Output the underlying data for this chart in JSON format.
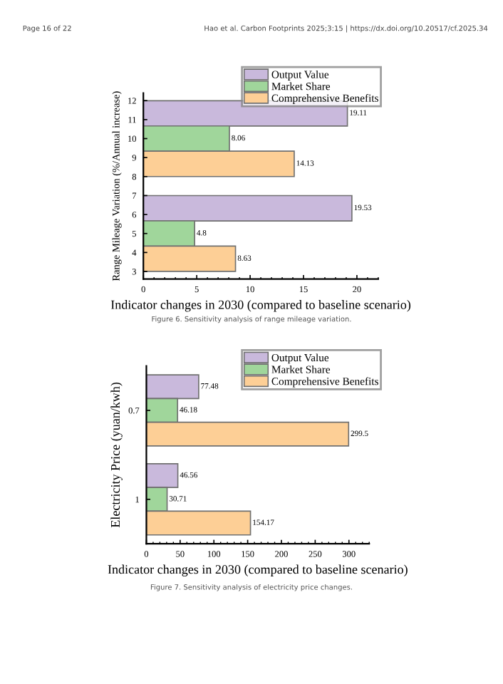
{
  "chart_data": [
    {
      "type": "bar",
      "orientation": "horizontal",
      "ylabel": "Range Mileage Variation (%/Annual increase)",
      "xlabel": "Indicator changes in 2030 (compared to baseline scenario)",
      "annotations": [
        "Page 16 of 22",
        "Hao et al. Carbon Footprints 2025;3:15 | https://dx.doi.org/10.20517/cf.2025.34",
        "Figure 6. Sensitivity analysis of range mileage variation."
      ],
      "series": [
        {
          "name": "Output Value",
          "color": "#c9b9dc",
          "x": [
            11.33,
            6.33
          ],
          "values": [
            19.11,
            19.53
          ]
        },
        {
          "name": "Market Share",
          "color": "#a0d69b",
          "x": [
            10.0,
            5.0
          ],
          "values": [
            8.06,
            4.8
          ]
        },
        {
          "name": "Comprehensive Benefits",
          "color": "#fdcf96",
          "x": [
            8.67,
            3.67
          ],
          "values": [
            14.13,
            8.63
          ]
        }
      ],
      "data_labels": true,
      "xlim": [
        0,
        22
      ],
      "xticks": [
        0,
        5,
        10,
        15,
        20
      ],
      "ylim": [
        2.6,
        12.4
      ],
      "yticks": [
        3,
        4,
        5,
        6,
        7,
        8,
        9,
        10,
        11,
        12
      ],
      "legend": "top right",
      "grid": false
    },
    {
      "type": "bar",
      "orientation": "horizontal",
      "ylabel": "Electricity Price (yuan/kwh)",
      "xlabel": "Indicator changes in 2030 (compared to baseline scenario)",
      "annotations": [
        "Figure 7. Sensitivity analysis of electricity price changes."
      ],
      "categories": [
        "0.7",
        "1"
      ],
      "series": [
        {
          "name": "Output Value",
          "color": "#c9b9dc",
          "values": [
            77.48,
            46.56
          ]
        },
        {
          "name": "Market Share",
          "color": "#a0d69b",
          "values": [
            46.18,
            30.71
          ]
        },
        {
          "name": "Comprehensive Benefits",
          "color": "#fdcf96",
          "values": [
            299.5,
            154.17
          ]
        }
      ],
      "data_labels": true,
      "xlim": [
        0,
        330
      ],
      "xticks": [
        0,
        50,
        100,
        150,
        200,
        250,
        300
      ],
      "legend": "top right",
      "grid": false
    }
  ]
}
